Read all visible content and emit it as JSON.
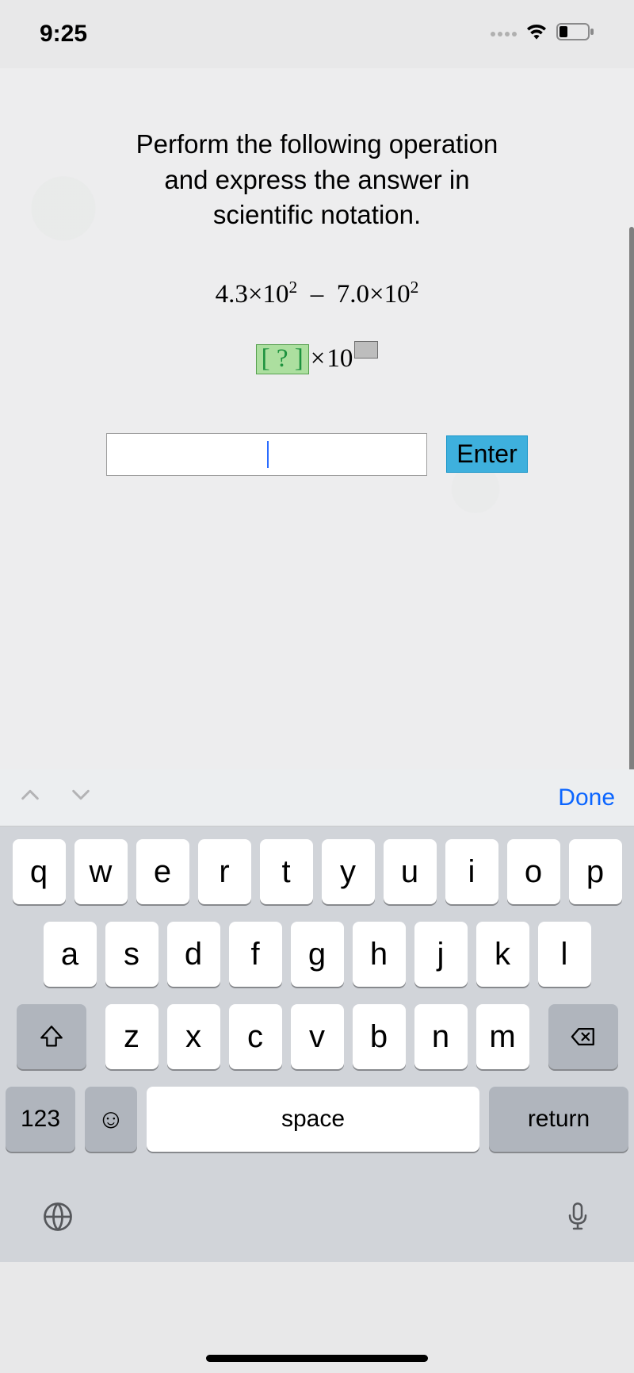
{
  "status": {
    "time": "9:25"
  },
  "question": {
    "line1": "Perform the following operation",
    "line2": "and express the answer in",
    "line3": "scientific notation.",
    "expr_a": "4.3",
    "expr_b": "7.0",
    "base": "10",
    "exp": "2",
    "slot_q": "?",
    "enter": "Enter"
  },
  "accessory": {
    "done": "Done"
  },
  "keyboard": {
    "row1": [
      "q",
      "w",
      "e",
      "r",
      "t",
      "y",
      "u",
      "i",
      "o",
      "p"
    ],
    "row2": [
      "a",
      "s",
      "d",
      "f",
      "g",
      "h",
      "j",
      "k",
      "l"
    ],
    "row3": [
      "z",
      "x",
      "c",
      "v",
      "b",
      "n",
      "m"
    ],
    "num": "123",
    "space": "space",
    "return": "return"
  },
  "colors": {
    "slot_green_bg": "#acdf9f",
    "slot_green_border": "#56a04e",
    "enter_bg": "#3eb0dd",
    "done": "#0b65ff",
    "kb_bg": "#d1d4d9",
    "key_bg": "#ffffff",
    "fn_bg": "#b0b5bd"
  }
}
